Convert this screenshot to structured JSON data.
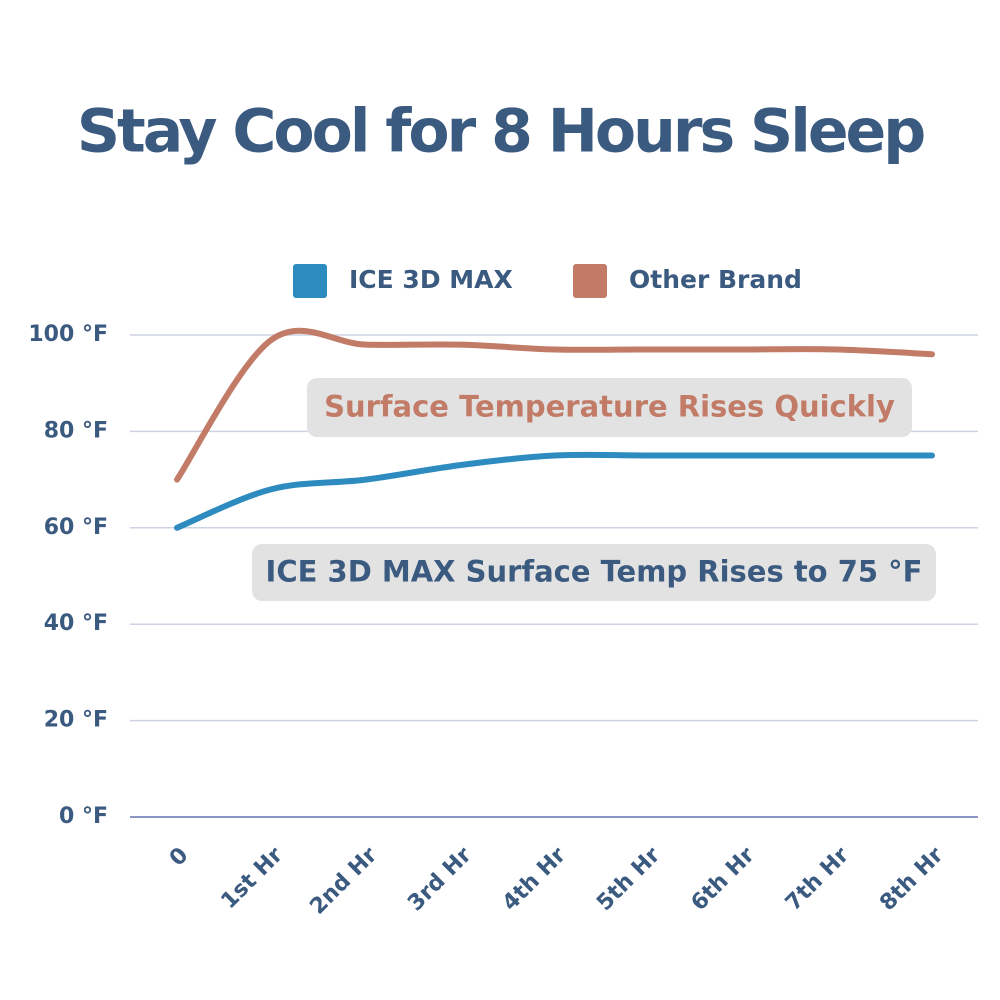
{
  "chart_data": {
    "type": "line",
    "title": "Stay Cool for 8 Hours Sleep",
    "categories": [
      "0",
      "1st Hr",
      "2nd Hr",
      "3rd Hr",
      "4th Hr",
      "5th Hr",
      "6th Hr",
      "7th Hr",
      "8th Hr"
    ],
    "series": [
      {
        "name": "ICE 3D MAX",
        "color": "#2e8bc0",
        "values": [
          60,
          68,
          70,
          73,
          75,
          75,
          75,
          75,
          75
        ]
      },
      {
        "name": "Other Brand",
        "color": "#c17b66",
        "values": [
          70,
          99,
          98,
          98,
          97,
          97,
          97,
          97,
          96
        ]
      }
    ],
    "ylim": [
      0,
      100
    ],
    "yticks": [
      {
        "value": 0,
        "label": "0 °F"
      },
      {
        "value": 20,
        "label": "20 °F"
      },
      {
        "value": 40,
        "label": "40 °F"
      },
      {
        "value": 60,
        "label": "60 °F"
      },
      {
        "value": 80,
        "label": "80 °F"
      },
      {
        "value": 100,
        "label": "100 °F"
      }
    ],
    "grid": true,
    "annotations": [
      {
        "text": "Surface Temperature Rises Quickly",
        "color": "#c17b66"
      },
      {
        "text": "ICE 3D MAX Surface Temp Rises to 75 °F",
        "color": "#3b5a80"
      }
    ]
  }
}
